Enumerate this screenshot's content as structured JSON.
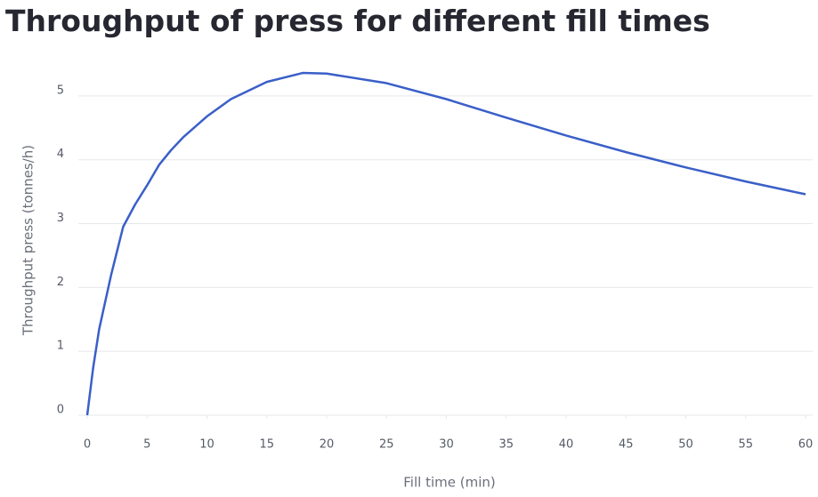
{
  "chart_data": {
    "type": "line",
    "title": "Throughput of press for different fill times",
    "x_label": "Fill time (min)",
    "y_label": "Throughput press (tonnes/h)",
    "x": [
      0,
      0.5,
      1,
      2,
      3,
      4,
      5,
      6,
      7,
      8,
      10,
      12,
      15,
      18,
      20,
      25,
      30,
      35,
      40,
      45,
      50,
      55,
      60
    ],
    "series": [
      {
        "name": "Throughput",
        "color": "#3a5fc8",
        "values": [
          0,
          0.75,
          1.35,
          2.2,
          2.95,
          3.3,
          3.6,
          3.92,
          4.15,
          4.35,
          4.68,
          4.95,
          5.22,
          5.36,
          5.35,
          5.2,
          4.95,
          4.66,
          4.38,
          4.12,
          3.88,
          3.66,
          3.46
        ]
      }
    ],
    "xlim": [
      0,
      60
    ],
    "xticks": [
      0,
      5,
      10,
      15,
      20,
      25,
      30,
      35,
      40,
      45,
      50,
      55,
      60
    ],
    "ylim": [
      0,
      5.5
    ],
    "yticks": [
      0,
      1,
      2,
      3,
      4,
      5
    ],
    "grid": true
  }
}
